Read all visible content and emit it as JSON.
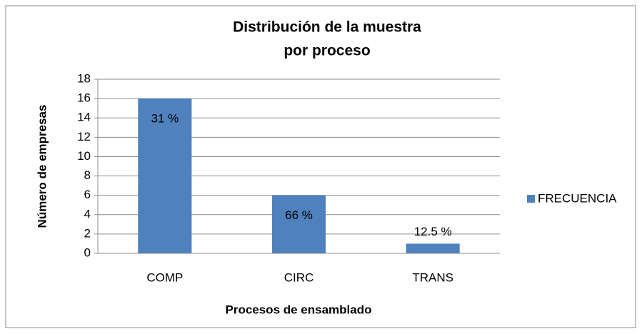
{
  "chart_data": {
    "type": "bar",
    "title": [
      "Distribución de la muestra",
      "por proceso"
    ],
    "x_label": "Procesos de ensamblado",
    "y_label": "Número de empresas",
    "categories": [
      "COMP",
      "CIRC",
      "TRANS"
    ],
    "series": [
      {
        "name": "FRECUENCIA",
        "color": "#4f81bd",
        "values": [
          16,
          6,
          1
        ]
      }
    ],
    "annotations": [
      "31 %",
      "66 %",
      "12.5 %"
    ],
    "ylim": [
      0,
      18
    ],
    "yticks": [
      0,
      2,
      4,
      6,
      8,
      10,
      12,
      14,
      16,
      18
    ],
    "grid": true,
    "legend": "right"
  }
}
